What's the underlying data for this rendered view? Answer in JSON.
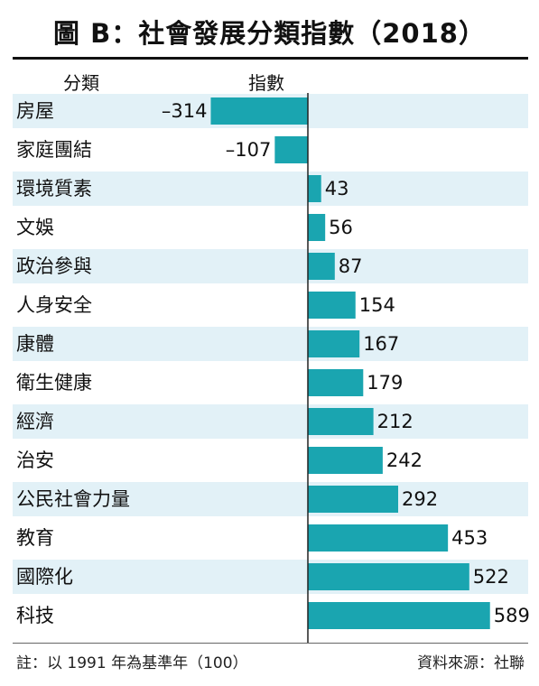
{
  "title": "圖 B：社會發展分類指數（2018）",
  "header": {
    "category": "分類",
    "index": "指數"
  },
  "footer": {
    "note": "註：以 1991 年為基準年（100）",
    "source": "資料來源：社聯"
  },
  "colors": {
    "bar": "#1aa5b0",
    "stripe": "#e2f1f7",
    "axis": "#222222"
  },
  "chart_data": {
    "type": "bar",
    "orientation": "horizontal",
    "title": "圖 B：社會發展分類指數（2018）",
    "categories": [
      "房屋",
      "家庭團結",
      "環境質素",
      "文娛",
      "政治參與",
      "人身安全",
      "康體",
      "衛生健康",
      "經濟",
      "治安",
      "公民社會力量",
      "教育",
      "國際化",
      "科技"
    ],
    "values": [
      -314,
      -107,
      43,
      56,
      87,
      154,
      167,
      179,
      212,
      242,
      292,
      453,
      522,
      589
    ],
    "value_labels": [
      "–314",
      "–107",
      "43",
      "56",
      "87",
      "154",
      "167",
      "179",
      "212",
      "242",
      "292",
      "453",
      "522",
      "589"
    ],
    "xlim": [
      -314,
      589
    ],
    "grid": false,
    "legend": "none"
  }
}
